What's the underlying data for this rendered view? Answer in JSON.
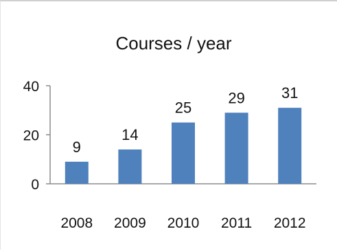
{
  "chart_data": {
    "type": "bar",
    "title": "Courses / year",
    "categories": [
      "2008",
      "2009",
      "2010",
      "2011",
      "2012"
    ],
    "values": [
      9,
      14,
      25,
      29,
      31
    ],
    "data_labels": [
      "9",
      "14",
      "25",
      "29",
      "31"
    ],
    "ylim": [
      0,
      40
    ],
    "yticks": [
      "0",
      "20",
      "40"
    ],
    "grid": false,
    "legend": "none",
    "bar_color": "#4f81bd",
    "axis_color": "#8c8c8c"
  }
}
